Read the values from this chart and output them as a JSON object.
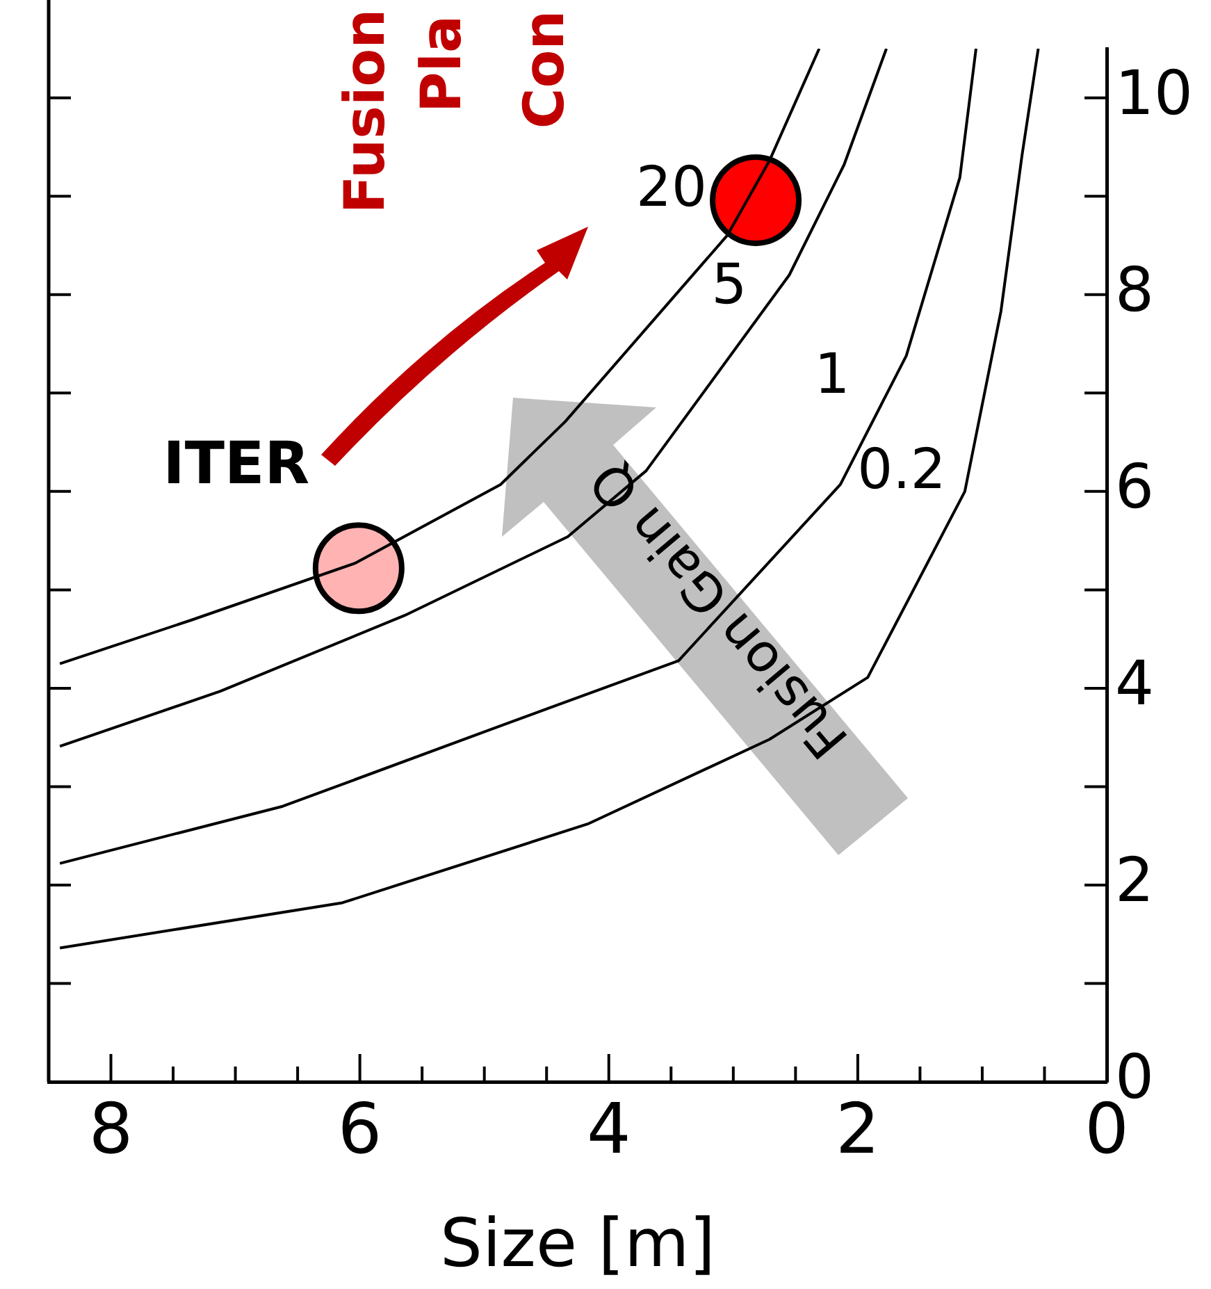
{
  "chart_data": {
    "type": "line",
    "xlabel": "Size [m]",
    "xlim": [
      8.5,
      0
    ],
    "xticks": [
      {
        "value": 0.5,
        "label": null
      },
      {
        "value": 1,
        "label": null
      },
      {
        "value": 1.5,
        "label": null
      },
      2,
      {
        "value": 2.5,
        "label": null
      },
      {
        "value": 3,
        "label": null
      },
      {
        "value": 3.5,
        "label": null
      },
      4,
      {
        "value": 4.5,
        "label": null
      },
      {
        "value": 5,
        "label": null
      },
      {
        "value": 5.5,
        "label": null
      },
      6,
      {
        "value": 6.5,
        "label": null
      },
      {
        "value": 7,
        "label": null
      },
      {
        "value": 7.5,
        "label": null
      },
      8,
      0
    ],
    "ylim": [
      0,
      10.5
    ],
    "yticks": [
      0,
      {
        "value": 1,
        "label": null
      },
      2,
      {
        "value": 3,
        "label": null
      },
      4,
      {
        "value": 5,
        "label": null
      },
      6,
      {
        "value": 7,
        "label": null
      },
      8,
      {
        "value": 9,
        "label": null
      },
      10
    ],
    "grid": false,
    "line_style": "solid",
    "series": [
      {
        "name": "20",
        "type": "line",
        "marker": "none",
        "color": "#000000",
        "x": [
          8.41,
          7.36,
          6.04,
          4.87,
          4.35,
          3.05,
          2.71,
          2.31
        ],
        "values": [
          4.25,
          4.69,
          5.27,
          6.07,
          6.71,
          8.6,
          9.36,
          10.5
        ]
      },
      {
        "name": "5",
        "type": "line",
        "marker": "none",
        "color": "#000000",
        "x": [
          8.41,
          7.12,
          5.64,
          4.33,
          3.7,
          2.55,
          2.11,
          1.77
        ],
        "values": [
          3.41,
          3.97,
          4.74,
          5.54,
          6.21,
          8.2,
          9.32,
          10.5
        ]
      },
      {
        "name": "1",
        "type": "line",
        "marker": "none",
        "color": "#000000",
        "x": [
          8.41,
          6.62,
          4.91,
          3.44,
          2.14,
          1.61,
          1.18,
          1.05
        ],
        "values": [
          2.22,
          2.8,
          3.6,
          4.28,
          6.07,
          7.38,
          9.19,
          10.5
        ]
      },
      {
        "name": "0.2",
        "type": "line",
        "marker": "none",
        "color": "#000000",
        "x": [
          8.41,
          6.14,
          4.17,
          2.71,
          1.92,
          1.14,
          0.85,
          0.68,
          0.55
        ],
        "values": [
          1.36,
          1.82,
          2.62,
          3.48,
          4.11,
          6.0,
          7.83,
          9.42,
          10.5
        ]
      },
      {
        "name": "ITER",
        "type": "scatter",
        "marker": "circle",
        "color": "#ffb3b3",
        "x": [
          6.01
        ],
        "values": [
          5.22
        ]
      },
      {
        "type": "scatter",
        "marker": "circle",
        "color": "#ff0000",
        "x": [
          2.82
        ],
        "values": [
          8.96
        ]
      }
    ],
    "annotations": [
      "Fusion Gain Q",
      "Fusion",
      "Pla",
      "Con"
    ]
  }
}
